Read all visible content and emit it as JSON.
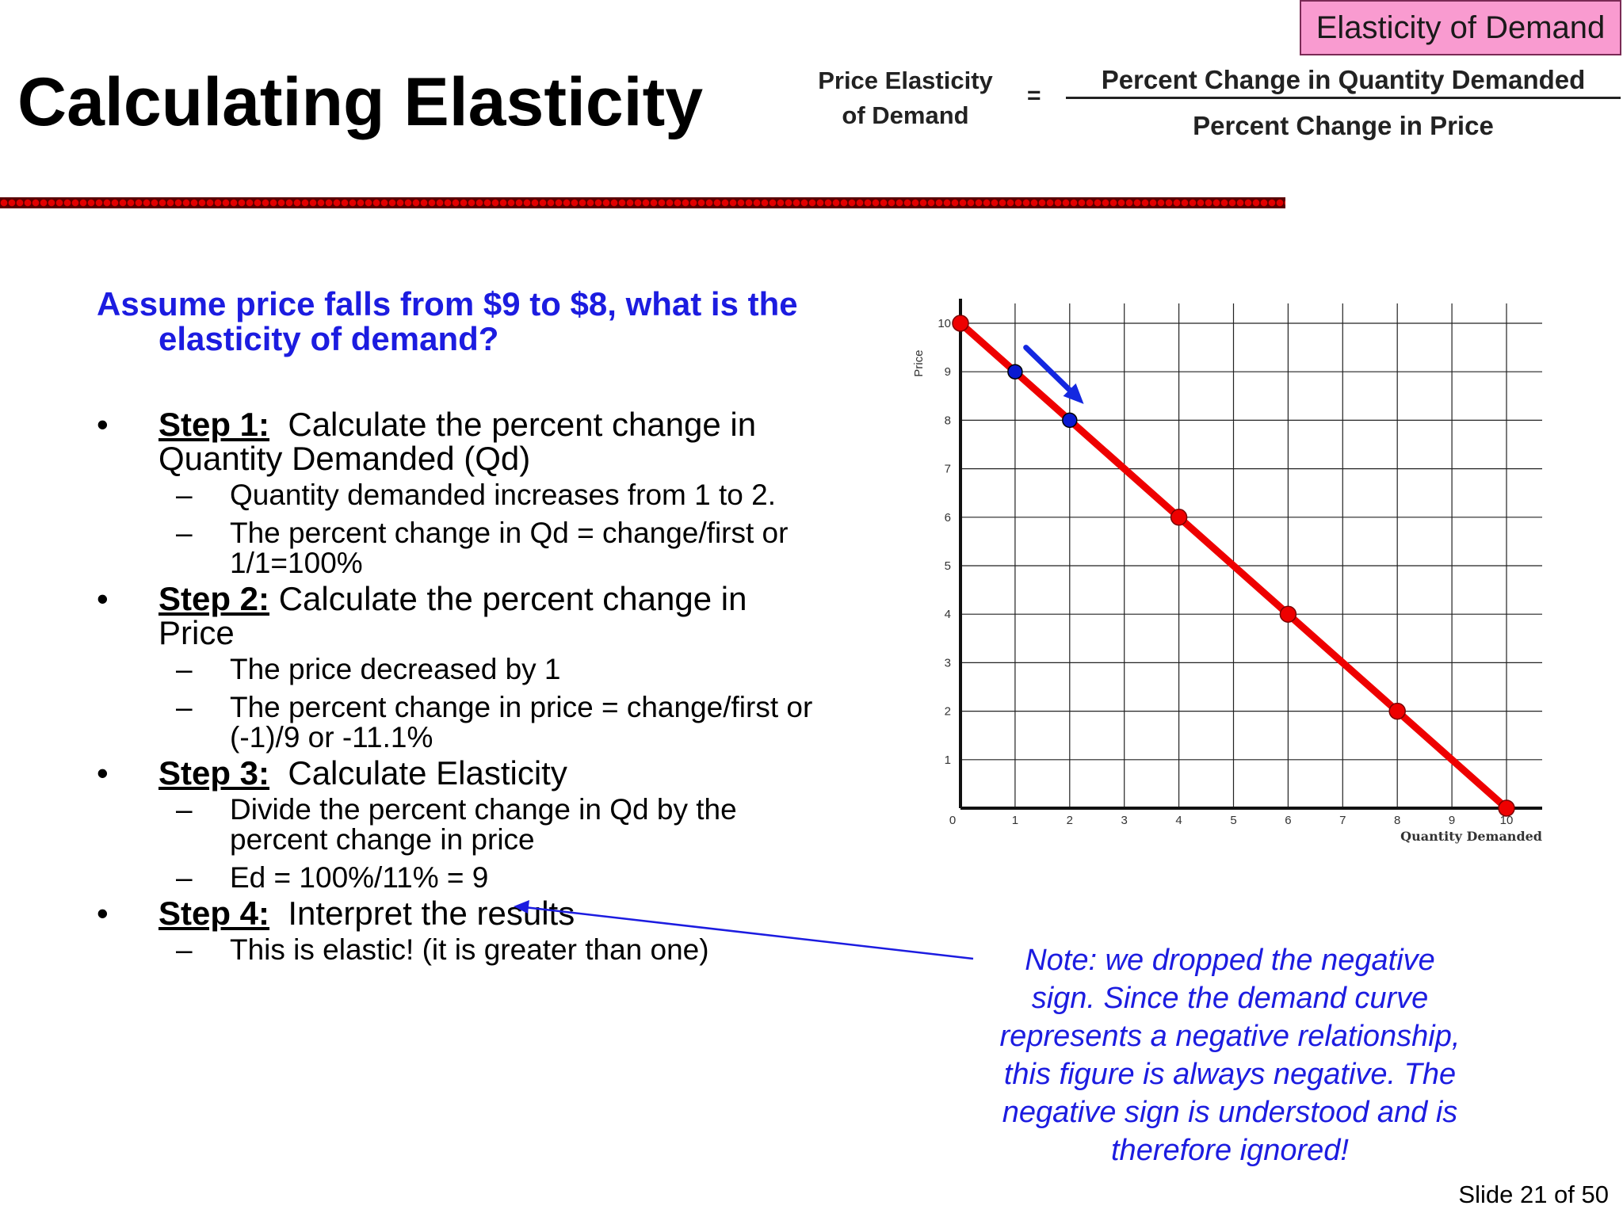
{
  "header": {
    "tag": "Elasticity of Demand",
    "title": "Calculating Elasticity",
    "formula": {
      "left": [
        "Price Elasticity",
        "of Demand"
      ],
      "equals": "=",
      "numerator": "Percent Change in Quantity Demanded",
      "denominator": "Percent Change in Price"
    }
  },
  "question": {
    "line1": "Assume price falls from $9 to $8, what is the",
    "line2": "elasticity of demand?"
  },
  "steps": [
    {
      "bullet": "•",
      "label": "Step 1:",
      "lines": [
        "  Calculate the percent change in",
        "Quantity Demanded (Qd)"
      ],
      "subs": [
        [
          "Quantity demanded increases from 1 to 2."
        ],
        [
          "The percent change in Qd = change/first or",
          "1/1=100%"
        ]
      ]
    },
    {
      "bullet": "•",
      "label": "Step 2:",
      "lines": [
        " Calculate the percent change in",
        "Price"
      ],
      "subs": [
        [
          "The price decreased by 1"
        ],
        [
          "The percent change in price = change/first or",
          "(-1)/9 or -11.1%"
        ]
      ]
    },
    {
      "bullet": "•",
      "label": "Step 3:",
      "lines": [
        "  Calculate Elasticity"
      ],
      "subs": [
        [
          "Divide the percent change in Qd by the",
          "percent change in price"
        ],
        [
          "Ed = 100%/11% = 9"
        ]
      ]
    },
    {
      "bullet": "•",
      "label": "Step 4:",
      "lines": [
        "  Interpret the results"
      ],
      "subs": [
        [
          "This is elastic! (it is greater than one)"
        ]
      ]
    }
  ],
  "dash": "–",
  "note": [
    "Note: we dropped the negative",
    "sign.  Since the demand curve",
    "represents a negative relationship,",
    "this figure is always negative.  The",
    "negative sign is understood and is",
    "therefore ignored!"
  ],
  "slide_number": "Slide 21 of 50",
  "chart_data": {
    "type": "line",
    "title": "",
    "xlabel": "Quantity Demanded",
    "ylabel": "Price",
    "xlim": [
      0,
      10
    ],
    "ylim": [
      0,
      10
    ],
    "x_ticks": [
      0,
      1,
      2,
      3,
      4,
      5,
      6,
      7,
      8,
      9,
      10
    ],
    "y_ticks": [
      1,
      2,
      3,
      4,
      5,
      6,
      7,
      8,
      9,
      10
    ],
    "grid": true,
    "series": [
      {
        "x": [
          0,
          4,
          6,
          8,
          10
        ],
        "y": [
          10,
          6,
          4,
          2,
          0
        ],
        "line_color": "#ee0000",
        "marker_color": "#ee0000"
      },
      {
        "x": [
          1,
          2
        ],
        "y": [
          9,
          8
        ],
        "marker_color": "#0a1ad0"
      }
    ],
    "annotations": [
      {
        "type": "arrow",
        "from": [
          1.2,
          9.5
        ],
        "to": [
          2.2,
          8.4
        ],
        "color": "#1428e0"
      }
    ]
  }
}
